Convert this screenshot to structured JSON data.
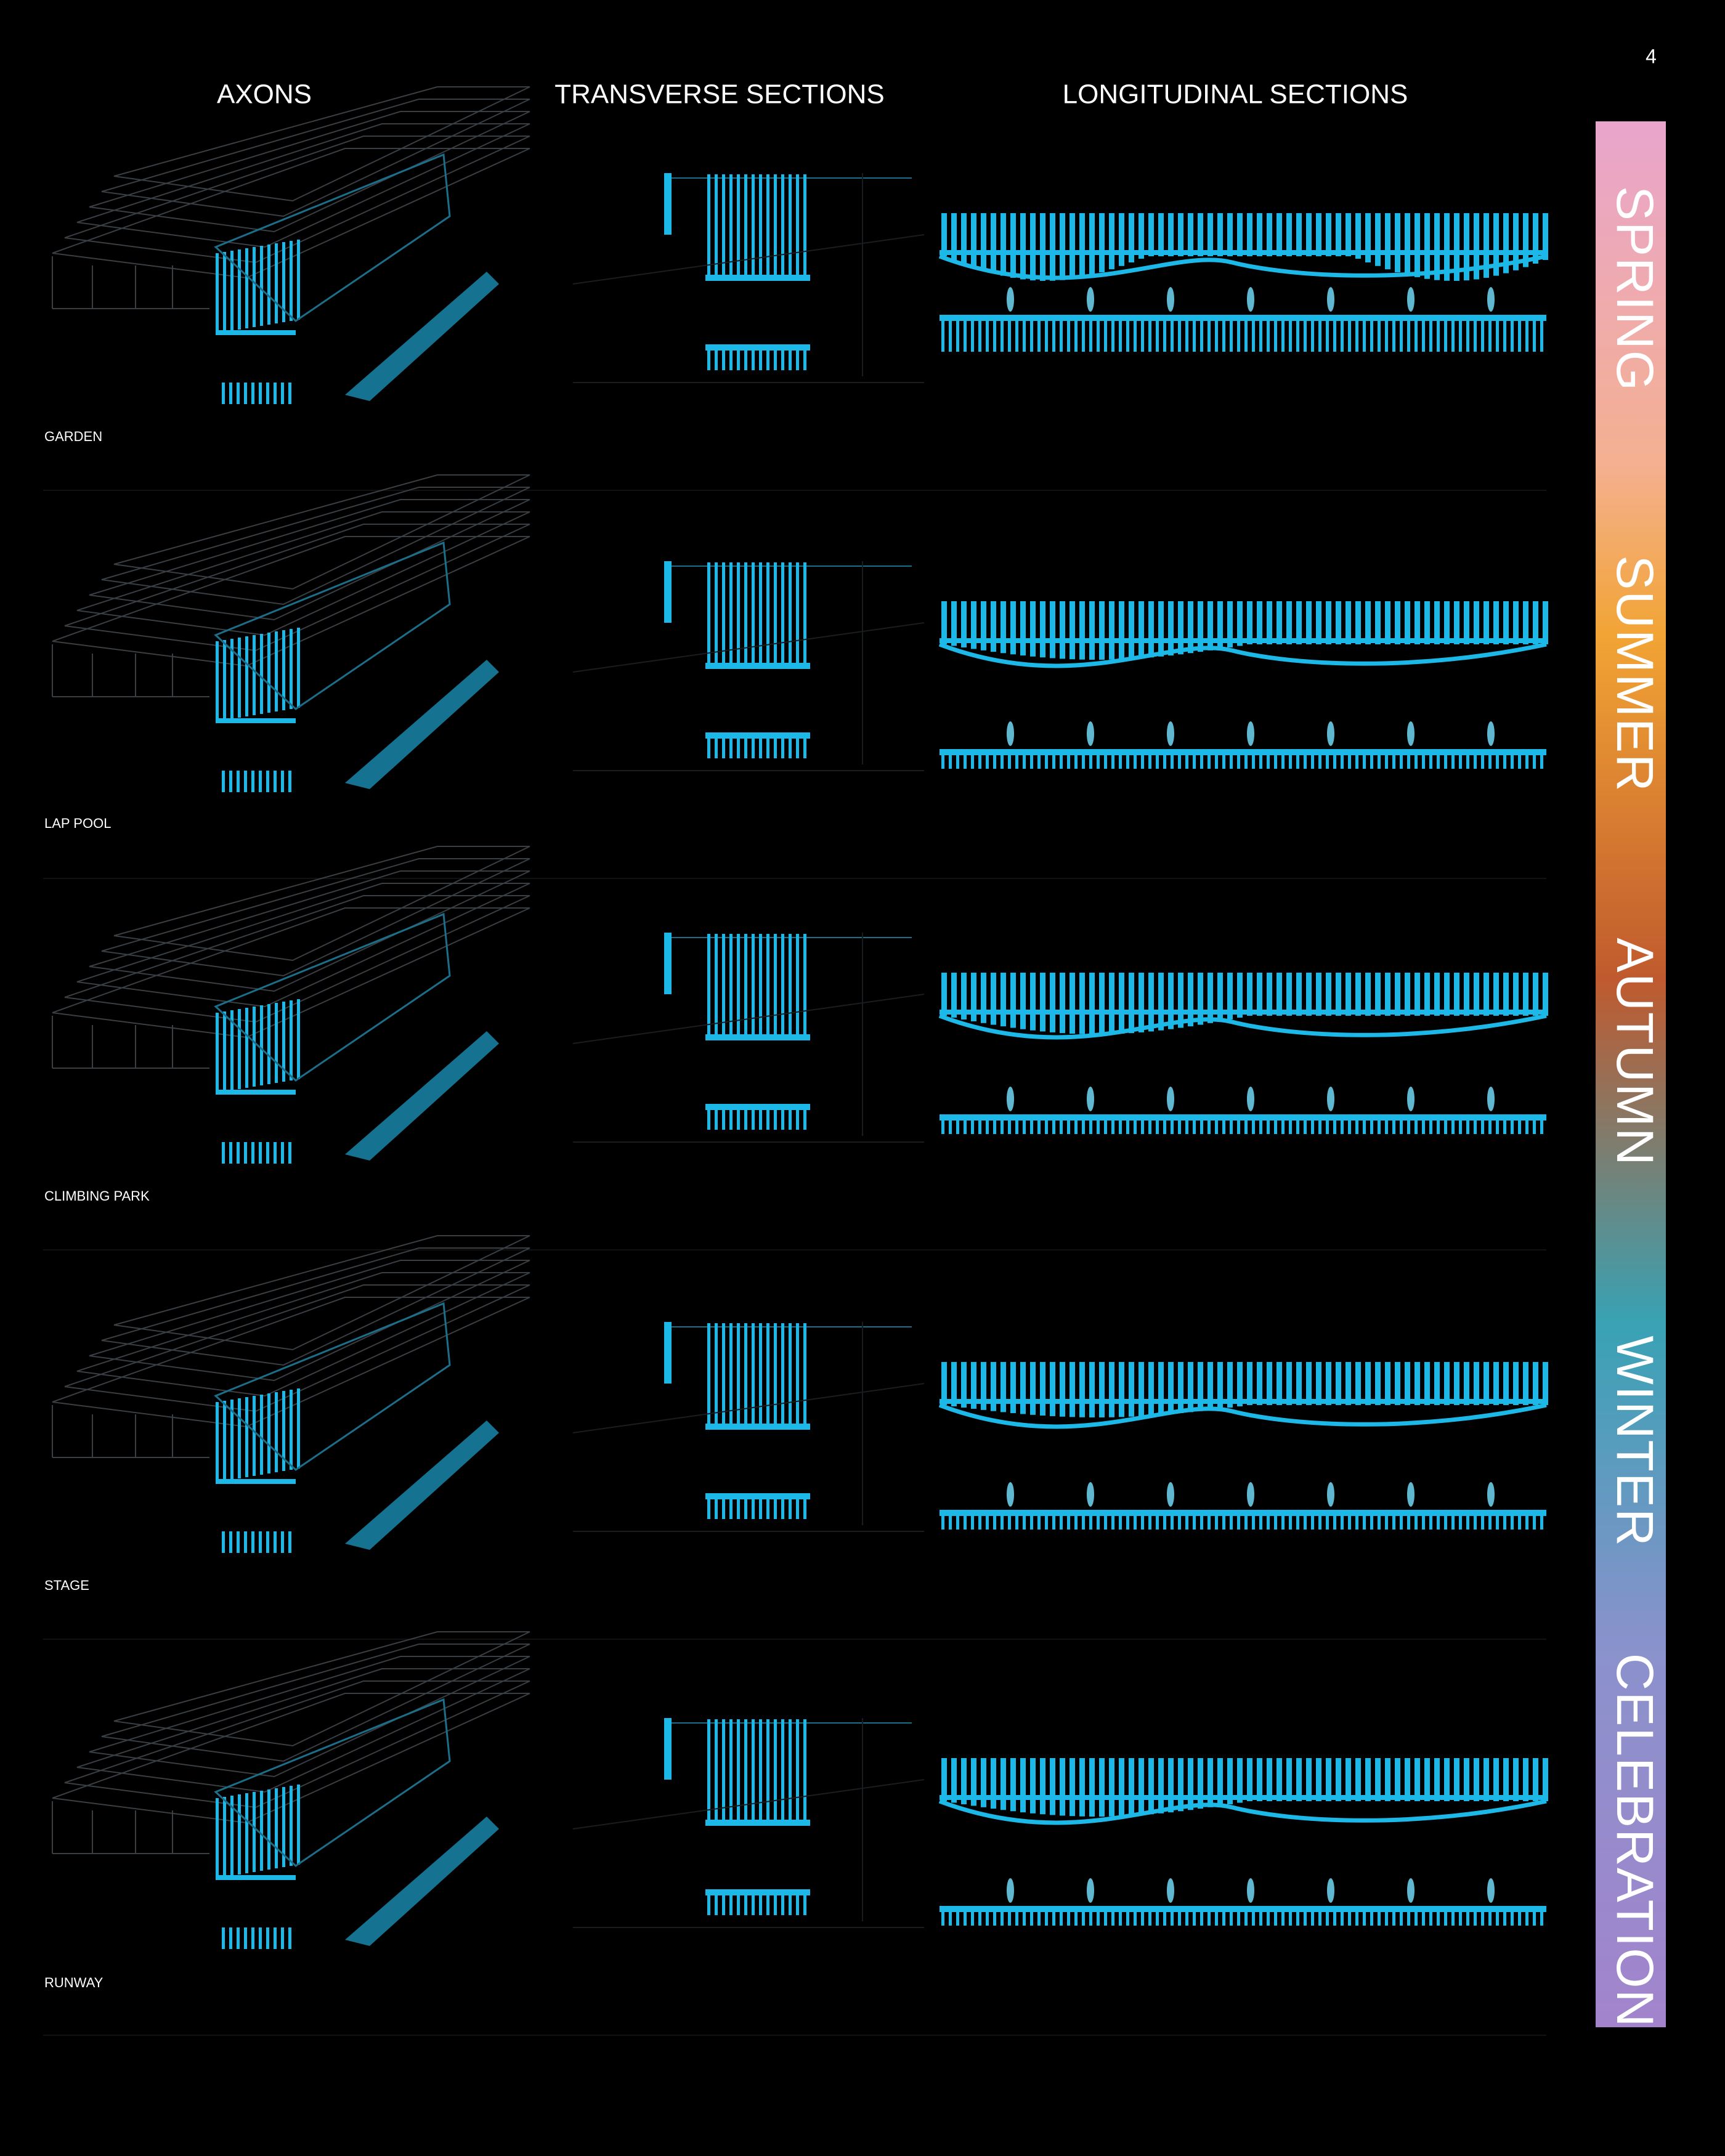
{
  "page_number": "4",
  "columns": [
    "AXONS",
    "TRANSVERSE SECTIONS",
    "LONGITUDINAL SECTIONS"
  ],
  "rows": [
    "GARDEN",
    "LAP POOL",
    "CLIMBING PARK",
    "STAGE",
    "RUNWAY"
  ],
  "seasons": [
    "SPRING",
    "SUMMER",
    "AUTUMN",
    "WINTER",
    "CELEBRATION"
  ]
}
